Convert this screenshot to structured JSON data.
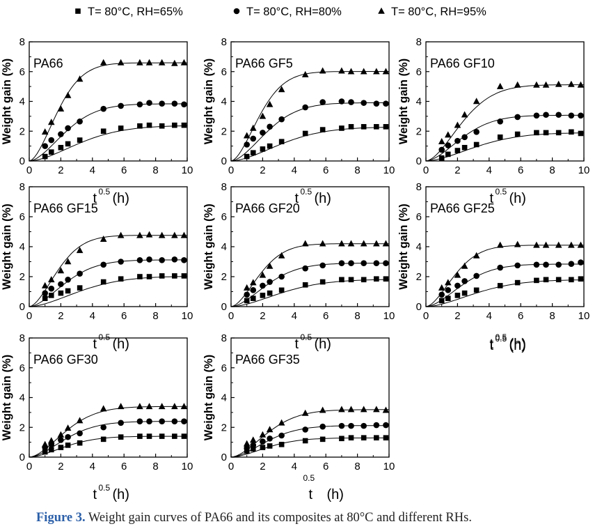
{
  "chart_data": {
    "type": "scatter",
    "legend": {
      "placement": "top",
      "entries": [
        {
          "marker": "square",
          "text": "T= 80°C, RH=65%"
        },
        {
          "marker": "circle",
          "text": "T= 80°C, RH=80%"
        },
        {
          "marker": "triangle",
          "text": "T= 80°C, RH=95%"
        }
      ]
    },
    "ylabel": "Weight gain (%)",
    "xlabel_main": "t",
    "xlabel_sup": "0.5",
    "xlabel_unit": "(h)",
    "xlim": [
      0,
      10
    ],
    "ylim": [
      0,
      8
    ],
    "xticks": [
      0,
      2,
      4,
      6,
      8,
      10
    ],
    "yticks": [
      0,
      2,
      4,
      6,
      8
    ],
    "x": [
      1.0,
      1.4,
      2.0,
      2.45,
      3.2,
      4.7,
      5.8,
      7.0,
      7.6,
      8.4,
      9.2,
      9.8
    ],
    "panels": [
      {
        "title": "PA66",
        "show_xlabel": true,
        "series": [
          {
            "marker": "square",
            "values": [
              0.3,
              0.6,
              0.9,
              1.15,
              1.4,
              2.0,
              2.2,
              2.35,
              2.4,
              2.35,
              2.4,
              2.4
            ]
          },
          {
            "marker": "circle",
            "values": [
              1.0,
              1.4,
              1.8,
              2.2,
              2.65,
              3.5,
              3.7,
              3.8,
              3.9,
              3.85,
              3.85,
              3.8
            ]
          },
          {
            "marker": "triangle",
            "values": [
              1.95,
              2.6,
              3.5,
              4.4,
              5.5,
              6.6,
              6.6,
              6.6,
              6.6,
              6.6,
              6.55,
              6.6
            ]
          }
        ]
      },
      {
        "title": "PA66  GF5",
        "show_xlabel": true,
        "series": [
          {
            "marker": "square",
            "values": [
              0.3,
              0.55,
              0.8,
              1.0,
              1.3,
              1.85,
              2.1,
              2.2,
              2.3,
              2.3,
              2.3,
              2.3
            ]
          },
          {
            "marker": "circle",
            "values": [
              1.1,
              1.5,
              1.9,
              2.3,
              2.8,
              3.6,
              3.95,
              4.0,
              3.95,
              3.9,
              3.85,
              3.85
            ]
          },
          {
            "marker": "triangle",
            "values": [
              1.7,
              2.2,
              3.0,
              3.8,
              4.8,
              5.8,
              6.05,
              6.05,
              6.0,
              6.0,
              6.0,
              6.0
            ]
          }
        ]
      },
      {
        "title": "PA66  GF10",
        "show_xlabel": true,
        "series": [
          {
            "marker": "square",
            "values": [
              0.2,
              0.45,
              0.7,
              0.9,
              1.1,
              1.6,
              1.8,
              1.9,
              1.9,
              1.9,
              1.95,
              1.85
            ]
          },
          {
            "marker": "circle",
            "values": [
              0.75,
              1.05,
              1.35,
              1.6,
              1.95,
              2.65,
              2.95,
              3.05,
              3.1,
              3.1,
              3.05,
              3.05
            ]
          },
          {
            "marker": "triangle",
            "values": [
              1.3,
              1.75,
              2.4,
              3.1,
              4.0,
              5.0,
              5.1,
              5.1,
              5.1,
              5.15,
              5.15,
              5.1
            ]
          }
        ]
      },
      {
        "title": "PA66  GF15",
        "show_xlabel": true,
        "series": [
          {
            "marker": "square",
            "values": [
              0.55,
              0.75,
              0.9,
              1.05,
              1.25,
              1.65,
              1.85,
              2.0,
              2.0,
              2.05,
              2.05,
              2.05
            ]
          },
          {
            "marker": "circle",
            "values": [
              0.9,
              1.2,
              1.5,
              1.8,
              2.2,
              2.8,
              3.0,
              3.1,
              3.15,
              3.1,
              3.15,
              3.1
            ]
          },
          {
            "marker": "triangle",
            "values": [
              1.4,
              1.8,
              2.4,
              3.0,
              3.75,
              4.5,
              4.75,
              4.75,
              4.8,
              4.75,
              4.75,
              4.75
            ]
          }
        ]
      },
      {
        "title": "PA66  GF20",
        "show_xlabel": true,
        "series": [
          {
            "marker": "square",
            "values": [
              0.4,
              0.55,
              0.75,
              0.9,
              1.1,
              1.45,
              1.65,
              1.8,
              1.8,
              1.8,
              1.85,
              1.85
            ]
          },
          {
            "marker": "circle",
            "values": [
              0.8,
              1.1,
              1.4,
              1.65,
              2.0,
              2.55,
              2.75,
              2.9,
              2.9,
              2.9,
              2.9,
              2.9
            ]
          },
          {
            "marker": "triangle",
            "values": [
              1.25,
              1.6,
              2.1,
              2.7,
              3.4,
              4.2,
              4.2,
              4.2,
              4.2,
              4.2,
              4.2,
              4.2
            ]
          }
        ]
      },
      {
        "title": "PA66  GF25",
        "show_xlabel": true,
        "series": [
          {
            "marker": "square",
            "values": [
              0.4,
              0.55,
              0.75,
              0.9,
              1.1,
              1.4,
              1.6,
              1.75,
              1.8,
              1.8,
              1.8,
              1.85
            ]
          },
          {
            "marker": "circle",
            "values": [
              0.8,
              1.1,
              1.4,
              1.7,
              2.05,
              2.6,
              2.75,
              2.8,
              2.8,
              2.8,
              2.85,
              2.95
            ]
          },
          {
            "marker": "triangle",
            "values": [
              1.25,
              1.6,
              2.1,
              2.7,
              3.4,
              4.1,
              4.15,
              4.1,
              4.1,
              4.1,
              4.1,
              4.1
            ]
          }
        ]
      },
      {
        "title": "PA66  GF30",
        "show_xlabel": true,
        "series": [
          {
            "marker": "square",
            "values": [
              0.35,
              0.5,
              0.65,
              0.8,
              0.95,
              1.2,
              1.35,
              1.4,
              1.4,
              1.4,
              1.4,
              1.4
            ]
          },
          {
            "marker": "circle",
            "values": [
              0.65,
              0.85,
              1.15,
              1.35,
              1.6,
              2.0,
              2.3,
              2.4,
              2.4,
              2.4,
              2.4,
              2.4
            ]
          },
          {
            "marker": "triangle",
            "values": [
              0.85,
              1.1,
              1.5,
              1.95,
              2.45,
              3.25,
              3.4,
              3.4,
              3.4,
              3.4,
              3.4,
              3.4
            ]
          }
        ]
      },
      {
        "title": "PA66  GF35",
        "show_xlabel": false,
        "series": [
          {
            "marker": "square",
            "values": [
              0.4,
              0.55,
              0.65,
              0.75,
              0.85,
              1.1,
              1.2,
              1.25,
              1.3,
              1.3,
              1.3,
              1.3
            ]
          },
          {
            "marker": "circle",
            "values": [
              0.6,
              0.8,
              1.05,
              1.25,
              1.45,
              1.85,
              2.05,
              2.1,
              2.1,
              2.1,
              2.15,
              2.15
            ]
          },
          {
            "marker": "triangle",
            "values": [
              0.9,
              1.15,
              1.5,
              1.85,
              2.3,
              2.95,
              3.15,
              3.2,
              3.2,
              3.2,
              3.2,
              3.15
            ]
          }
        ]
      }
    ],
    "standalone_xlabels": [
      {
        "main": "t",
        "sup": "0.5",
        "unit": "(h)"
      }
    ],
    "last_xlabel": {
      "main": "t",
      "sub": "0.5",
      "unit": "(h)"
    }
  },
  "caption": {
    "label": "Figure 3.",
    "text": " Weight gain curves of PA66 and its composites at 80°C and different RHs."
  }
}
